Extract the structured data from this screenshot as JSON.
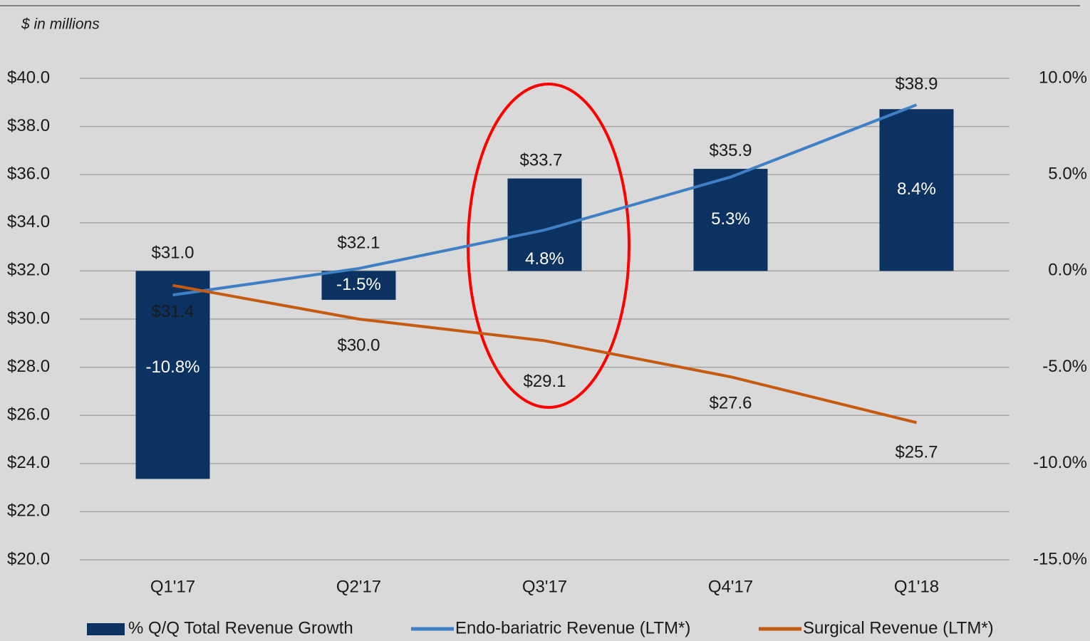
{
  "chart_data": {
    "type": "combo",
    "subtitle": "$ in millions",
    "categories": [
      "Q1'17",
      "Q2'17",
      "Q3'17",
      "Q4'17",
      "Q1'18"
    ],
    "series": [
      {
        "name": "% Q/Q Total Revenue Growth",
        "type": "bar",
        "axis": "y2",
        "color": "#0b3260",
        "values": [
          -10.8,
          -1.5,
          4.8,
          5.3,
          8.4
        ],
        "value_labels": [
          "-10.8%",
          "-1.5%",
          "4.8%",
          "5.3%",
          "8.4%"
        ]
      },
      {
        "name": "Endo-bariatric Revenue (LTM*)",
        "type": "line",
        "color": "#3f80c4",
        "values": [
          31.0,
          32.1,
          33.7,
          35.9,
          38.9
        ],
        "value_labels": [
          "$31.0",
          "$32.1",
          "$33.7",
          "$35.9",
          "$38.9"
        ]
      },
      {
        "name": "Surgical Revenue (LTM*)",
        "type": "line",
        "color": "#c55a11",
        "values": [
          31.4,
          30.0,
          29.1,
          27.6,
          25.7
        ],
        "value_labels": [
          "$31.4",
          "$30.0",
          "$29.1",
          "$27.6",
          "$25.7"
        ]
      }
    ],
    "ylim": [
      20,
      40
    ],
    "yticks": [
      {
        "value": 20,
        "label": "$20.0"
      },
      {
        "value": 22,
        "label": "$22.0"
      },
      {
        "value": 24,
        "label": "$24.0"
      },
      {
        "value": 26,
        "label": "$26.0"
      },
      {
        "value": 28,
        "label": "$28.0"
      },
      {
        "value": 30,
        "label": "$30.0"
      },
      {
        "value": 32,
        "label": "$32.0"
      },
      {
        "value": 34,
        "label": "$34.0"
      },
      {
        "value": 36,
        "label": "$36.0"
      },
      {
        "value": 38,
        "label": "$38.0"
      },
      {
        "value": 40,
        "label": "$40.0"
      }
    ],
    "y2lim": [
      -15,
      10
    ],
    "y2ticks": [
      {
        "value": -15,
        "label": "-15.0%"
      },
      {
        "value": -10,
        "label": "-10.0%"
      },
      {
        "value": -5,
        "label": "-5.0%"
      },
      {
        "value": 0,
        "label": "0.0%"
      },
      {
        "value": 5,
        "label": "5.0%"
      },
      {
        "value": 10,
        "label": "10.0%"
      }
    ],
    "grid": true,
    "legend": "bottom"
  }
}
